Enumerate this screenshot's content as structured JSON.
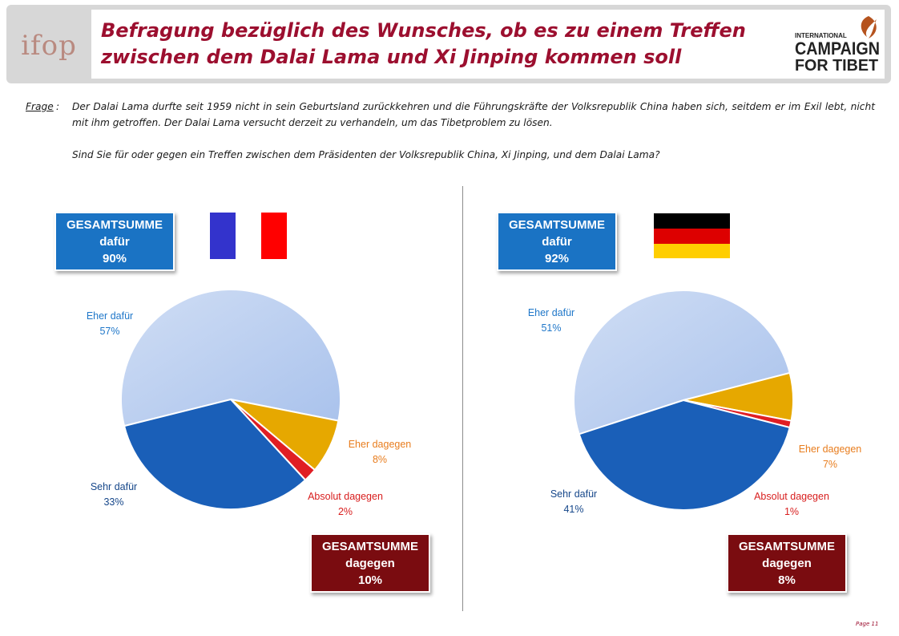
{
  "title_line1": "Befragung bezüglich des Wunsches, ob es zu einem Treffen",
  "title_line2": "zwischen dem Dalai Lama und Xi Jinping kommen soll",
  "logos": {
    "left": "ifop",
    "right_line1": "INTERNATIONAL",
    "right_line2": "CAMPAIGN",
    "right_line3": "FOR TIBET"
  },
  "question": {
    "label": "Frage",
    "colon": ":",
    "text1": "Der Dalai Lama durfte seit 1959 nicht in sein Geburtsland zurückkehren und die Führungskräfte der Volksrepublik China haben sich, seitdem er im Exil lebt, nicht mit ihm getroffen. Der Dalai Lama versucht derzeit zu verhandeln, um das Tibetproblem zu lösen.",
    "text2": "Sind Sie für oder gegen ein Treffen zwischen dem Präsidenten der Volksrepublik China, Xi Jinping, und dem Dalai Lama?"
  },
  "france": {
    "total_for": {
      "line1": "GESAMTSUMME",
      "line2": "dafür",
      "line3": "90%"
    },
    "total_against": {
      "line1": "GESAMTSUMME",
      "line2": "dagegen",
      "line3": "10%"
    },
    "flag_colors": [
      "#3333cc",
      "#ffffff",
      "#ff0000"
    ]
  },
  "germany": {
    "total_for": {
      "line1": "GESAMTSUMME",
      "line2": "dafür",
      "line3": "92%"
    },
    "total_against": {
      "line1": "GESAMTSUMME",
      "line2": "dagegen",
      "line3": "8%"
    },
    "flag_colors": [
      "#000000",
      "#dd0000",
      "#ffce00"
    ]
  },
  "colors": {
    "eher_dafuer": "#a9c2ec",
    "sehr_dafuer": "#1a5fb8",
    "eher_dagegen": "#e6a800",
    "absolut_dagegen": "#e01e24",
    "label_blue": "#1f77c9",
    "label_darkblue": "#16478a",
    "label_orange": "#e87d1e",
    "label_red": "#d81e1e",
    "title": "#9c0f2f"
  },
  "chart_data": [
    {
      "type": "pie",
      "slices": [
        {
          "label": "Eher dafür",
          "value": 57,
          "value_text": "57%"
        },
        {
          "label": "Eher dagegen",
          "value": 8,
          "value_text": "8%"
        },
        {
          "label": "Absolut dagegen",
          "value": 2,
          "value_text": "2%"
        },
        {
          "label": "Sehr dafür",
          "value": 33,
          "value_text": "33%"
        }
      ]
    },
    {
      "type": "pie",
      "slices": [
        {
          "label": "Eher dafür",
          "value": 51,
          "value_text": "51%"
        },
        {
          "label": "Eher dagegen",
          "value": 7,
          "value_text": "7%"
        },
        {
          "label": "Absolut dagegen",
          "value": 1,
          "value_text": "1%"
        },
        {
          "label": "Sehr dafür",
          "value": 41,
          "value_text": "41%"
        }
      ]
    }
  ],
  "page_label": "Page 11"
}
